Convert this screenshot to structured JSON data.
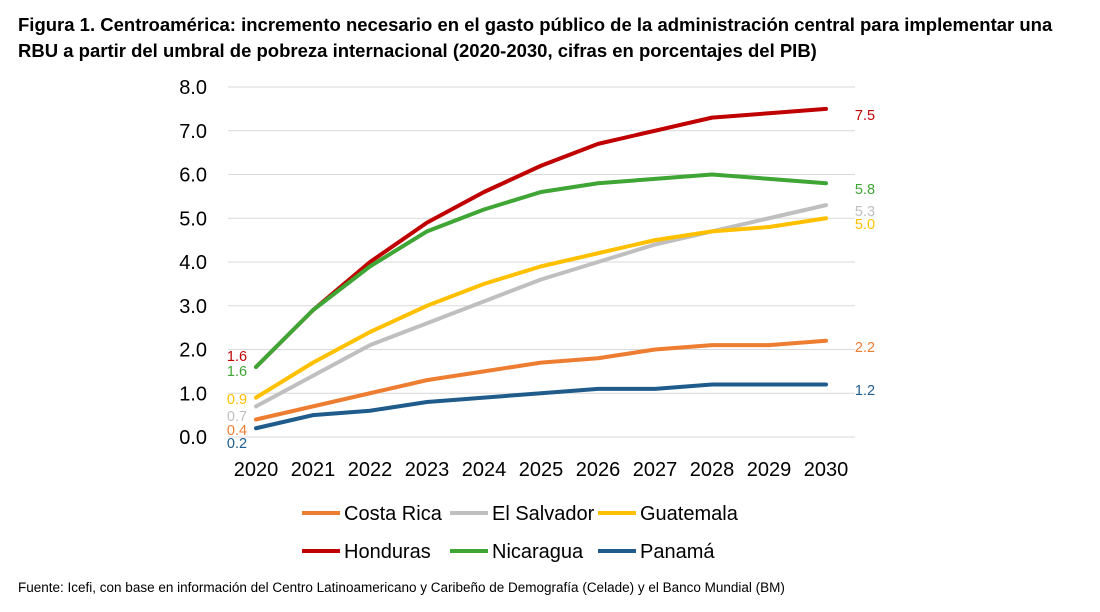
{
  "title": "Figura 1. Centroamérica: incremento necesario en el gasto público de la administración central para implementar una RBU a partir del umbral de pobreza internacional (2020-2030, cifras en porcentajes del PIB)",
  "source": "Fuente: Icefi, con base en información del Centro Latinoamericano y Caribeño de Demografía (Celade) y el Banco Mundial (BM)",
  "chart_data": {
    "type": "line",
    "title": "Figura 1. Centroamérica: incremento necesario en el gasto público de la administración central para implementar una RBU a partir del umbral de pobreza internacional (2020-2030, cifras en porcentajes del PIB)",
    "xlabel": "",
    "ylabel": "",
    "x": [
      "2020",
      "2021",
      "2022",
      "2023",
      "2024",
      "2025",
      "2026",
      "2027",
      "2028",
      "2029",
      "2030"
    ],
    "ylim": [
      0,
      8
    ],
    "yticks": [
      "0.0",
      "1.0",
      "2.0",
      "3.0",
      "4.0",
      "5.0",
      "6.0",
      "7.0",
      "8.0"
    ],
    "grid": true,
    "legend_position": "bottom",
    "series": [
      {
        "name": "Costa Rica",
        "color": "#ED7D31",
        "values": [
          0.4,
          0.7,
          1.0,
          1.3,
          1.5,
          1.7,
          1.8,
          2.0,
          2.1,
          2.1,
          2.2
        ],
        "start_label": "0.4",
        "end_label": "2.2"
      },
      {
        "name": "El Salvador",
        "color": "#BFBFBF",
        "values": [
          0.7,
          1.4,
          2.1,
          2.6,
          3.1,
          3.6,
          4.0,
          4.4,
          4.7,
          5.0,
          5.3
        ],
        "start_label": "0.7",
        "end_label": "5.3"
      },
      {
        "name": "Guatemala",
        "color": "#FFC000",
        "values": [
          0.9,
          1.7,
          2.4,
          3.0,
          3.5,
          3.9,
          4.2,
          4.5,
          4.7,
          4.8,
          5.0
        ],
        "start_label": "0.9",
        "end_label": "5.0"
      },
      {
        "name": "Honduras",
        "color": "#C00000",
        "values": [
          1.6,
          2.9,
          4.0,
          4.9,
          5.6,
          6.2,
          6.7,
          7.0,
          7.3,
          7.4,
          7.5
        ],
        "start_label": "1.6",
        "end_label": "7.5"
      },
      {
        "name": "Nicaragua",
        "color": "#3FA535",
        "values": [
          1.6,
          2.9,
          3.9,
          4.7,
          5.2,
          5.6,
          5.8,
          5.9,
          6.0,
          5.9,
          5.8
        ],
        "start_label": "1.6",
        "end_label": "5.8"
      },
      {
        "name": "Panamá",
        "color": "#1F5C8B",
        "values": [
          0.2,
          0.5,
          0.6,
          0.8,
          0.9,
          1.0,
          1.1,
          1.1,
          1.2,
          1.2,
          1.2
        ],
        "start_label": "0.2",
        "end_label": "1.2"
      }
    ]
  }
}
